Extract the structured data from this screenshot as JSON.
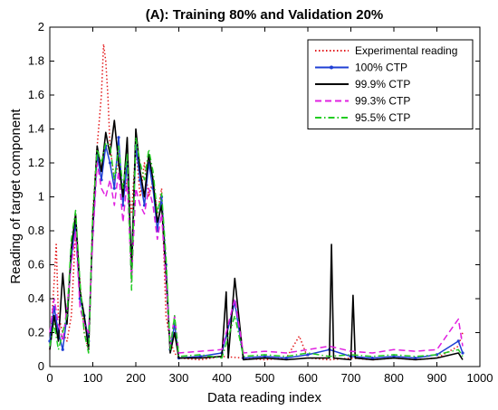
{
  "chart_data": {
    "type": "line",
    "title": "(A): Training 80% and Validation 20%",
    "xlabel": "Data reading index",
    "ylabel": "Reading of target component",
    "xlim": [
      0,
      1000
    ],
    "ylim": [
      0,
      2
    ],
    "xticks": [
      0,
      100,
      200,
      300,
      400,
      500,
      600,
      700,
      800,
      900,
      1000
    ],
    "yticks": [
      0,
      0.2,
      0.4,
      0.6,
      0.8,
      1,
      1.2,
      1.4,
      1.6,
      1.8,
      2
    ],
    "xtick_labels": [
      "0",
      "100",
      "200",
      "300",
      "400",
      "500",
      "600",
      "700",
      "800",
      "900",
      "1000"
    ],
    "ytick_labels": [
      "0",
      "0.2",
      "0.4",
      "0.6",
      "0.8",
      "1",
      "1.2",
      "1.4",
      "1.6",
      "1.8",
      "2"
    ],
    "grid": false,
    "legend_position": "top-right",
    "series": [
      {
        "name": "Experimental reading",
        "color": "#e31a1c",
        "style": "dotted",
        "x": [
          0,
          10,
          15,
          20,
          30,
          40,
          50,
          60,
          70,
          80,
          90,
          100,
          110,
          120,
          125,
          130,
          135,
          140,
          150,
          160,
          170,
          180,
          190,
          200,
          210,
          220,
          230,
          240,
          250,
          260,
          270,
          280,
          290,
          300,
          350,
          400,
          450,
          500,
          550,
          580,
          600,
          650,
          700,
          750,
          800,
          850,
          900,
          950,
          960
        ],
        "y": [
          0.1,
          0.5,
          0.72,
          0.3,
          0.2,
          0.15,
          0.3,
          0.8,
          0.5,
          0.2,
          0.1,
          0.9,
          1.3,
          1.6,
          1.9,
          1.8,
          1.6,
          1.3,
          1.1,
          1.2,
          1.0,
          1.1,
          0.9,
          1.3,
          1.0,
          1.2,
          1.0,
          1.1,
          0.9,
          1.05,
          0.3,
          0.15,
          0.08,
          0.05,
          0.04,
          0.06,
          0.05,
          0.04,
          0.05,
          0.18,
          0.05,
          0.04,
          0.05,
          0.04,
          0.05,
          0.04,
          0.05,
          0.12,
          0.2
        ]
      },
      {
        "name": "100% CTP",
        "color": "#1f3fd4",
        "style": "solid-dot",
        "x": [
          0,
          10,
          20,
          30,
          40,
          50,
          60,
          70,
          80,
          90,
          100,
          110,
          120,
          130,
          140,
          150,
          160,
          170,
          180,
          190,
          200,
          210,
          220,
          230,
          240,
          250,
          260,
          270,
          280,
          290,
          300,
          350,
          400,
          430,
          450,
          500,
          550,
          600,
          650,
          700,
          750,
          800,
          850,
          900,
          950,
          960
        ],
        "y": [
          0.15,
          0.35,
          0.2,
          0.1,
          0.3,
          0.65,
          0.85,
          0.4,
          0.3,
          0.15,
          0.8,
          1.25,
          1.1,
          1.3,
          1.2,
          1.05,
          1.35,
          0.95,
          1.2,
          0.6,
          1.3,
          1.1,
          0.95,
          1.2,
          1.05,
          0.8,
          1.0,
          0.6,
          0.1,
          0.25,
          0.05,
          0.06,
          0.08,
          0.38,
          0.05,
          0.06,
          0.05,
          0.07,
          0.1,
          0.06,
          0.05,
          0.06,
          0.05,
          0.07,
          0.15,
          0.08
        ]
      },
      {
        "name": "99.9% CTP",
        "color": "#000000",
        "style": "solid",
        "x": [
          0,
          10,
          20,
          30,
          40,
          50,
          60,
          70,
          80,
          90,
          100,
          110,
          120,
          130,
          140,
          150,
          160,
          170,
          180,
          190,
          200,
          210,
          220,
          230,
          240,
          250,
          260,
          270,
          280,
          290,
          300,
          350,
          400,
          410,
          415,
          430,
          450,
          500,
          550,
          600,
          650,
          655,
          660,
          700,
          705,
          710,
          750,
          800,
          850,
          900,
          950,
          960
        ],
        "y": [
          0.1,
          0.3,
          0.15,
          0.55,
          0.25,
          0.7,
          0.9,
          0.45,
          0.3,
          0.1,
          0.85,
          1.3,
          1.15,
          1.38,
          1.25,
          1.45,
          1.2,
          1.0,
          1.35,
          0.55,
          1.4,
          1.15,
          1.0,
          1.25,
          1.1,
          0.85,
          0.95,
          0.55,
          0.08,
          0.2,
          0.05,
          0.05,
          0.06,
          0.44,
          0.05,
          0.52,
          0.04,
          0.05,
          0.04,
          0.05,
          0.05,
          0.72,
          0.05,
          0.04,
          0.42,
          0.05,
          0.04,
          0.05,
          0.04,
          0.05,
          0.08,
          0.04
        ]
      },
      {
        "name": "99.3% CTP",
        "color": "#e020e0",
        "style": "dashed",
        "x": [
          0,
          10,
          20,
          30,
          40,
          50,
          60,
          70,
          80,
          90,
          100,
          110,
          120,
          130,
          140,
          150,
          160,
          170,
          180,
          190,
          200,
          210,
          220,
          230,
          240,
          250,
          260,
          270,
          280,
          290,
          300,
          350,
          400,
          430,
          450,
          500,
          550,
          600,
          650,
          700,
          750,
          800,
          850,
          900,
          950,
          960
        ],
        "y": [
          0.2,
          0.4,
          0.25,
          0.15,
          0.35,
          0.6,
          0.8,
          0.35,
          0.25,
          0.2,
          0.75,
          1.2,
          1.05,
          1.0,
          1.1,
          0.95,
          1.15,
          0.85,
          1.1,
          0.5,
          1.05,
          0.95,
          0.9,
          1.05,
          0.95,
          0.75,
          0.9,
          0.5,
          0.12,
          0.3,
          0.08,
          0.09,
          0.1,
          0.4,
          0.08,
          0.09,
          0.08,
          0.1,
          0.12,
          0.09,
          0.08,
          0.1,
          0.09,
          0.1,
          0.28,
          0.12
        ]
      },
      {
        "name": "95.5% CTP",
        "color": "#22cc22",
        "style": "dashdot",
        "x": [
          0,
          10,
          20,
          30,
          40,
          50,
          60,
          70,
          80,
          90,
          100,
          110,
          120,
          130,
          140,
          150,
          160,
          170,
          180,
          190,
          200,
          210,
          220,
          230,
          240,
          250,
          260,
          270,
          280,
          290,
          300,
          350,
          400,
          430,
          450,
          500,
          550,
          600,
          650,
          700,
          750,
          800,
          850,
          900,
          950,
          960
        ],
        "y": [
          0.12,
          0.25,
          0.1,
          0.2,
          0.3,
          0.75,
          0.92,
          0.5,
          0.2,
          0.08,
          0.9,
          1.28,
          1.2,
          1.32,
          1.3,
          1.1,
          1.3,
          1.05,
          1.25,
          0.45,
          1.35,
          1.2,
          1.1,
          1.28,
          1.15,
          0.9,
          1.02,
          0.65,
          0.1,
          0.3,
          0.06,
          0.07,
          0.05,
          0.3,
          0.06,
          0.07,
          0.06,
          0.08,
          0.06,
          0.07,
          0.06,
          0.07,
          0.06,
          0.07,
          0.1,
          0.06
        ]
      }
    ]
  }
}
